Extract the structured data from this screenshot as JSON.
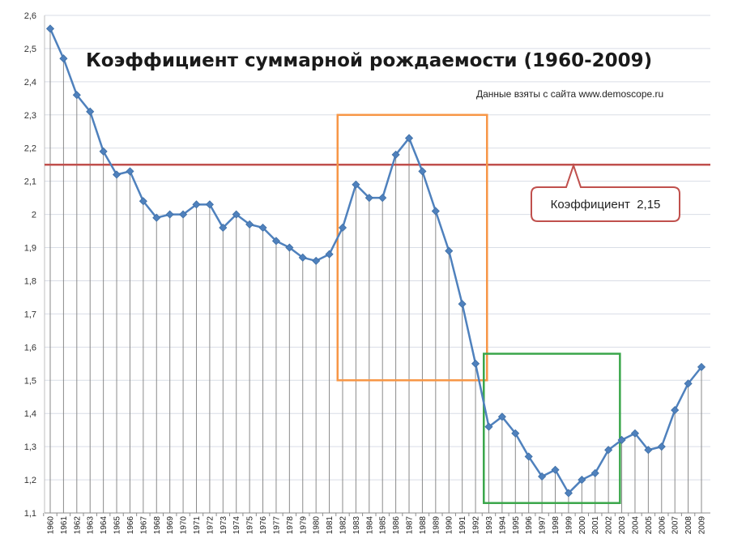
{
  "chart_data": {
    "type": "line",
    "title": "Коэффициент суммарной рождаемости (1960-2009)",
    "subtitle": "Данные взяты с сайта www.demoscope.ru",
    "x": [
      "1960",
      "1961",
      "1962",
      "1963",
      "1964",
      "1965",
      "1966",
      "1967",
      "1968",
      "1969",
      "1970",
      "1971",
      "1972",
      "1973",
      "1974",
      "1975",
      "1976",
      "1977",
      "1978",
      "1979",
      "1980",
      "1981",
      "1982",
      "1983",
      "1984",
      "1985",
      "1986",
      "1987",
      "1988",
      "1989",
      "1990",
      "1991",
      "1992",
      "1993",
      "1994",
      "1995",
      "1996",
      "1997",
      "1998",
      "1999",
      "2000",
      "2001",
      "2002",
      "2003",
      "2004",
      "2005",
      "2006",
      "2007",
      "2008",
      "2009"
    ],
    "values": [
      2.56,
      2.47,
      2.36,
      2.31,
      2.19,
      2.12,
      2.13,
      2.04,
      1.99,
      2.0,
      2.0,
      2.03,
      2.03,
      1.96,
      2.0,
      1.97,
      1.96,
      1.92,
      1.9,
      1.87,
      1.86,
      1.88,
      1.96,
      2.09,
      2.05,
      2.05,
      2.18,
      2.23,
      2.13,
      2.01,
      1.89,
      1.73,
      1.55,
      1.36,
      1.39,
      1.34,
      1.27,
      1.21,
      1.23,
      1.16,
      1.2,
      1.22,
      1.29,
      1.32,
      1.34,
      1.29,
      1.3,
      1.41,
      1.49,
      1.54
    ],
    "yticks": [
      "1,1",
      "1,2",
      "1,3",
      "1,4",
      "1,5",
      "1,6",
      "1,7",
      "1,8",
      "1,9",
      "2",
      "2,1",
      "2,2",
      "2,3",
      "2,4",
      "2,5",
      "2,6"
    ],
    "ylim": [
      1.1,
      2.6
    ],
    "grid": true,
    "reference_line": {
      "value": 2.15,
      "label": "Коэффициент  2,15",
      "color": "#c0504d"
    },
    "highlights": [
      {
        "x_from": "1982",
        "x_to": "1992",
        "y_from": 1.5,
        "y_to": 2.3,
        "color": "#f79646"
      },
      {
        "x_from": "1993",
        "x_to": "2002",
        "y_from": 1.13,
        "y_to": 1.58,
        "color": "#3aa64a"
      }
    ],
    "series_color": "#4f81bd"
  }
}
